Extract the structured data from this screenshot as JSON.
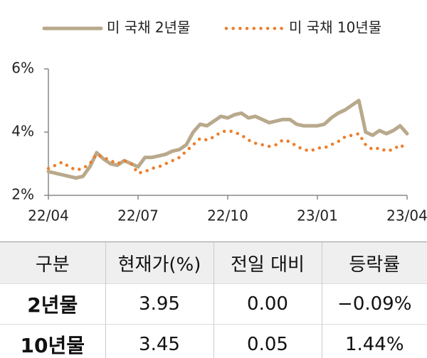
{
  "chart_data": {
    "type": "line",
    "categories": [
      "22/04",
      null,
      null,
      null,
      null,
      null,
      null,
      null,
      null,
      null,
      null,
      null,
      null,
      "22/07",
      null,
      null,
      null,
      null,
      null,
      null,
      null,
      null,
      null,
      null,
      null,
      null,
      "22/10",
      null,
      null,
      null,
      null,
      null,
      null,
      null,
      null,
      null,
      null,
      null,
      null,
      "23/01",
      null,
      null,
      null,
      null,
      null,
      null,
      null,
      null,
      null,
      null,
      null,
      null,
      "23/04"
    ],
    "series": [
      {
        "name": "미 국채 2년물",
        "color": "#b9a98c",
        "values": [
          2.75,
          2.7,
          2.65,
          2.6,
          2.55,
          2.6,
          2.9,
          3.35,
          3.15,
          3.0,
          2.95,
          3.1,
          3.0,
          2.9,
          3.2,
          3.2,
          3.25,
          3.3,
          3.4,
          3.45,
          3.6,
          4.0,
          4.25,
          4.2,
          4.35,
          4.5,
          4.45,
          4.55,
          4.6,
          4.45,
          4.5,
          4.4,
          4.3,
          4.35,
          4.4,
          4.4,
          4.25,
          4.2,
          4.2,
          4.2,
          4.25,
          4.45,
          4.6,
          4.7,
          4.85,
          5.0,
          4.0,
          3.9,
          4.05,
          3.95,
          4.05,
          4.2,
          3.95
        ]
      },
      {
        "name": "미 국채 10년물",
        "color": "#ee7d2a",
        "values": [
          2.85,
          2.95,
          3.05,
          2.9,
          2.8,
          2.85,
          3.0,
          3.3,
          3.2,
          3.1,
          3.0,
          3.1,
          3.0,
          2.7,
          2.75,
          2.85,
          2.9,
          3.0,
          3.1,
          3.2,
          3.4,
          3.6,
          3.8,
          3.75,
          3.85,
          4.0,
          4.05,
          4.0,
          3.9,
          3.75,
          3.65,
          3.6,
          3.55,
          3.6,
          3.75,
          3.7,
          3.55,
          3.45,
          3.4,
          3.5,
          3.5,
          3.6,
          3.7,
          3.85,
          3.9,
          3.95,
          3.6,
          3.45,
          3.5,
          3.4,
          3.45,
          3.6,
          3.45
        ]
      }
    ],
    "ylim": [
      2,
      6
    ],
    "yticks": [
      {
        "value": 2,
        "label": "2%"
      },
      {
        "value": 4,
        "label": "4%"
      },
      {
        "value": 6,
        "label": "6%"
      }
    ]
  },
  "table": {
    "header": [
      "구분",
      "현재가(%)",
      "전일 대비",
      "등락률"
    ],
    "rows": [
      [
        "2년물",
        "3.95",
        "0.00",
        "−0.09%"
      ],
      [
        "10년물",
        "3.45",
        "0.05",
        "1.44%"
      ]
    ]
  }
}
